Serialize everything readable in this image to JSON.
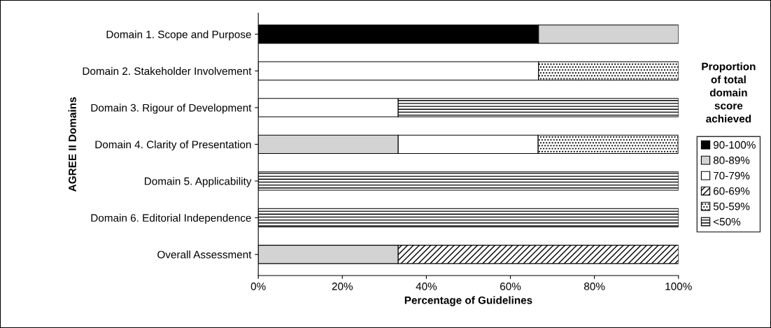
{
  "chart_data": {
    "type": "bar",
    "orientation": "horizontal",
    "stacked": true,
    "xlabel": "Percentage of Guidelines",
    "ylabel": "AGREE II Domains",
    "legend_title": "Proportion\nof total\ndomain\nscore\nachieved",
    "legend": "right",
    "categories": [
      "Domain 1. Scope and Purpose",
      "Domain 2. Stakeholder Involvement",
      "Domain 3. Rigour of Development",
      "Domain 4. Clarity of Presentation",
      "Domain 5. Applicability",
      "Domain 6. Editorial Independence",
      "Overall Assessment"
    ],
    "xlim": [
      0,
      100
    ],
    "xticks": [
      {
        "value": 0,
        "label": "0%"
      },
      {
        "value": 20,
        "label": "20%"
      },
      {
        "value": 40,
        "label": "40%"
      },
      {
        "value": 60,
        "label": "60%"
      },
      {
        "value": 80,
        "label": "80%"
      },
      {
        "value": 100,
        "label": "100%"
      }
    ],
    "grid": false,
    "series": [
      {
        "name": "90-100%",
        "color": "#000000",
        "values": [
          66.7,
          null,
          null,
          null,
          null,
          null,
          null
        ]
      },
      {
        "name": "80-89%",
        "color": "#d3d3d3",
        "values": [
          33.3,
          null,
          null,
          33.3,
          null,
          null,
          33.3
        ]
      },
      {
        "name": "70-79%",
        "color": "#ffffff",
        "values": [
          null,
          66.7,
          33.3,
          33.3,
          null,
          null,
          null
        ]
      },
      {
        "name": "60-69%",
        "color": "#000000",
        "values": [
          null,
          null,
          null,
          null,
          null,
          null,
          66.7
        ]
      },
      {
        "name": "50-59%",
        "color": "#000000",
        "values": [
          null,
          33.3,
          null,
          33.3,
          null,
          null,
          null
        ]
      },
      {
        "name": "<50%",
        "color": "#000000",
        "values": [
          null,
          null,
          66.7,
          null,
          100,
          100,
          null
        ]
      }
    ]
  }
}
